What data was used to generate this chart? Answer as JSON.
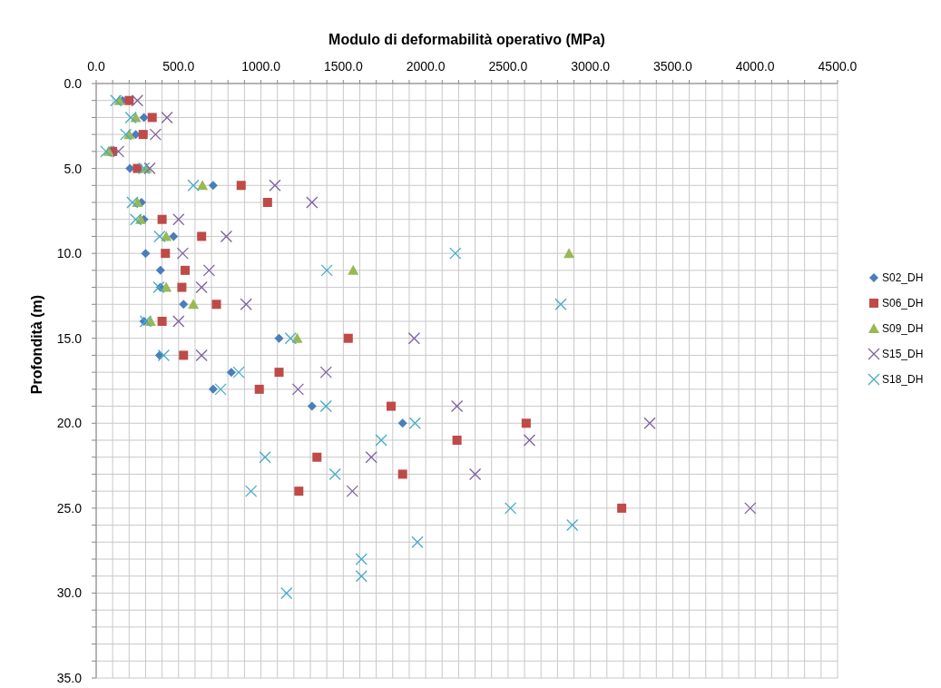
{
  "chart_data": {
    "type": "scatter",
    "title": "Modulo di deformabilità operativo (MPa)",
    "ylabel": "Profondità (m)",
    "xlim": [
      0,
      4500
    ],
    "ylim": [
      35,
      0
    ],
    "xticks": [
      {
        "value": 0,
        "label": "0.0"
      },
      {
        "value": 100,
        "label": null
      },
      {
        "value": 200,
        "label": null
      },
      {
        "value": 300,
        "label": null
      },
      {
        "value": 400,
        "label": null
      },
      {
        "value": 500,
        "label": "500.0"
      },
      {
        "value": 600,
        "label": null
      },
      {
        "value": 700,
        "label": null
      },
      {
        "value": 800,
        "label": null
      },
      {
        "value": 900,
        "label": null
      },
      {
        "value": 1000,
        "label": "1000.0"
      },
      {
        "value": 1100,
        "label": null
      },
      {
        "value": 1200,
        "label": null
      },
      {
        "value": 1300,
        "label": null
      },
      {
        "value": 1400,
        "label": null
      },
      {
        "value": 1500,
        "label": "1500.0"
      },
      {
        "value": 1600,
        "label": null
      },
      {
        "value": 1700,
        "label": null
      },
      {
        "value": 1800,
        "label": null
      },
      {
        "value": 1900,
        "label": null
      },
      {
        "value": 2000,
        "label": "2000.0"
      },
      {
        "value": 2100,
        "label": null
      },
      {
        "value": 2200,
        "label": null
      },
      {
        "value": 2300,
        "label": null
      },
      {
        "value": 2400,
        "label": null
      },
      {
        "value": 2500,
        "label": "2500.0"
      },
      {
        "value": 2600,
        "label": null
      },
      {
        "value": 2700,
        "label": null
      },
      {
        "value": 2800,
        "label": null
      },
      {
        "value": 2900,
        "label": null
      },
      {
        "value": 3000,
        "label": "3000.0"
      },
      {
        "value": 3100,
        "label": null
      },
      {
        "value": 3200,
        "label": null
      },
      {
        "value": 3300,
        "label": null
      },
      {
        "value": 3400,
        "label": null
      },
      {
        "value": 3500,
        "label": "3500.0"
      },
      {
        "value": 3600,
        "label": null
      },
      {
        "value": 3700,
        "label": null
      },
      {
        "value": 3800,
        "label": null
      },
      {
        "value": 3900,
        "label": null
      },
      {
        "value": 4000,
        "label": "4000.0"
      },
      {
        "value": 4100,
        "label": null
      },
      {
        "value": 4200,
        "label": null
      },
      {
        "value": 4300,
        "label": null
      },
      {
        "value": 4400,
        "label": null
      },
      {
        "value": 4500,
        "label": "4500.0"
      }
    ],
    "yticks": [
      {
        "value": 0,
        "label": "0.0"
      },
      {
        "value": 1,
        "label": null
      },
      {
        "value": 2,
        "label": null
      },
      {
        "value": 3,
        "label": null
      },
      {
        "value": 4,
        "label": null
      },
      {
        "value": 5,
        "label": "5.0"
      },
      {
        "value": 6,
        "label": null
      },
      {
        "value": 7,
        "label": null
      },
      {
        "value": 8,
        "label": null
      },
      {
        "value": 9,
        "label": null
      },
      {
        "value": 10,
        "label": "10.0"
      },
      {
        "value": 11,
        "label": null
      },
      {
        "value": 12,
        "label": null
      },
      {
        "value": 13,
        "label": null
      },
      {
        "value": 14,
        "label": null
      },
      {
        "value": 15,
        "label": "15.0"
      },
      {
        "value": 16,
        "label": null
      },
      {
        "value": 17,
        "label": null
      },
      {
        "value": 18,
        "label": null
      },
      {
        "value": 19,
        "label": null
      },
      {
        "value": 20,
        "label": "20.0"
      },
      {
        "value": 21,
        "label": null
      },
      {
        "value": 22,
        "label": null
      },
      {
        "value": 23,
        "label": null
      },
      {
        "value": 24,
        "label": null
      },
      {
        "value": 25,
        "label": "25.0"
      },
      {
        "value": 26,
        "label": null
      },
      {
        "value": 27,
        "label": null
      },
      {
        "value": 28,
        "label": null
      },
      {
        "value": 29,
        "label": null
      },
      {
        "value": 30,
        "label": "30.0"
      },
      {
        "value": 31,
        "label": null
      },
      {
        "value": 32,
        "label": null
      },
      {
        "value": 33,
        "label": null
      },
      {
        "value": 34,
        "label": null
      },
      {
        "value": 35,
        "label": "35.0"
      }
    ],
    "grid": true,
    "legend": "right",
    "series": [
      {
        "name": "S02_DH",
        "color": "#4a7ebb",
        "marker": "diamond",
        "x": [
          160,
          290,
          240,
          205,
          710,
          275,
          290,
          470,
          300,
          390,
          390,
          530,
          290,
          1110,
          385,
          820,
          710,
          1310,
          1860
        ],
        "values": [
          1,
          2,
          3,
          5,
          6,
          7,
          8,
          9,
          10,
          11,
          12,
          13,
          14,
          15,
          16,
          17,
          18,
          19,
          20
        ]
      },
      {
        "name": "S06_DH",
        "color": "#be4b48",
        "marker": "square",
        "x": [
          200,
          340,
          285,
          100,
          250,
          880,
          1040,
          400,
          640,
          420,
          540,
          520,
          730,
          400,
          1530,
          530,
          1110,
          990,
          1790,
          2610,
          2190,
          1340,
          1860,
          1230,
          3190
        ],
        "values": [
          1,
          2,
          3,
          4,
          5,
          6,
          7,
          8,
          9,
          10,
          11,
          12,
          13,
          14,
          15,
          16,
          17,
          18,
          19,
          20,
          21,
          22,
          23,
          24,
          25
        ]
      },
      {
        "name": "S09_DH",
        "color": "#98b954",
        "marker": "triangle",
        "x": [
          140,
          240,
          200,
          75,
          305,
          645,
          250,
          270,
          425,
          2870,
          1560,
          425,
          590,
          330,
          1220
        ],
        "values": [
          1,
          2,
          3,
          4,
          5,
          6,
          7,
          8,
          9,
          10,
          11,
          12,
          13,
          14,
          15
        ]
      },
      {
        "name": "S15_DH",
        "color": "#7d60a0",
        "marker": "cross",
        "x": [
          250,
          430,
          360,
          135,
          325,
          1085,
          1310,
          500,
          790,
          525,
          685,
          640,
          910,
          500,
          1930,
          640,
          1395,
          1225,
          2190,
          3360,
          2630,
          1670,
          2300,
          1555,
          3970
        ],
        "values": [
          1,
          2,
          3,
          4,
          5,
          6,
          7,
          8,
          9,
          10,
          11,
          12,
          13,
          14,
          15,
          16,
          17,
          18,
          19,
          20,
          21,
          22,
          23,
          24,
          25
        ]
      },
      {
        "name": "S18_DH",
        "color": "#46aac5",
        "marker": "cross",
        "x": [
          120,
          210,
          180,
          60,
          290,
          590,
          220,
          240,
          385,
          2180,
          1400,
          380,
          2820,
          300,
          1180,
          410,
          865,
          755,
          1395,
          1935,
          1730,
          1025,
          1450,
          940,
          2515,
          2890,
          1950,
          1610,
          1610,
          1155
        ],
        "values": [
          1,
          2,
          3,
          4,
          5,
          6,
          7,
          8,
          9,
          10,
          11,
          12,
          13,
          14,
          15,
          16,
          17,
          18,
          19,
          20,
          21,
          22,
          23,
          24,
          25,
          26,
          27,
          28,
          29,
          30
        ]
      }
    ]
  }
}
